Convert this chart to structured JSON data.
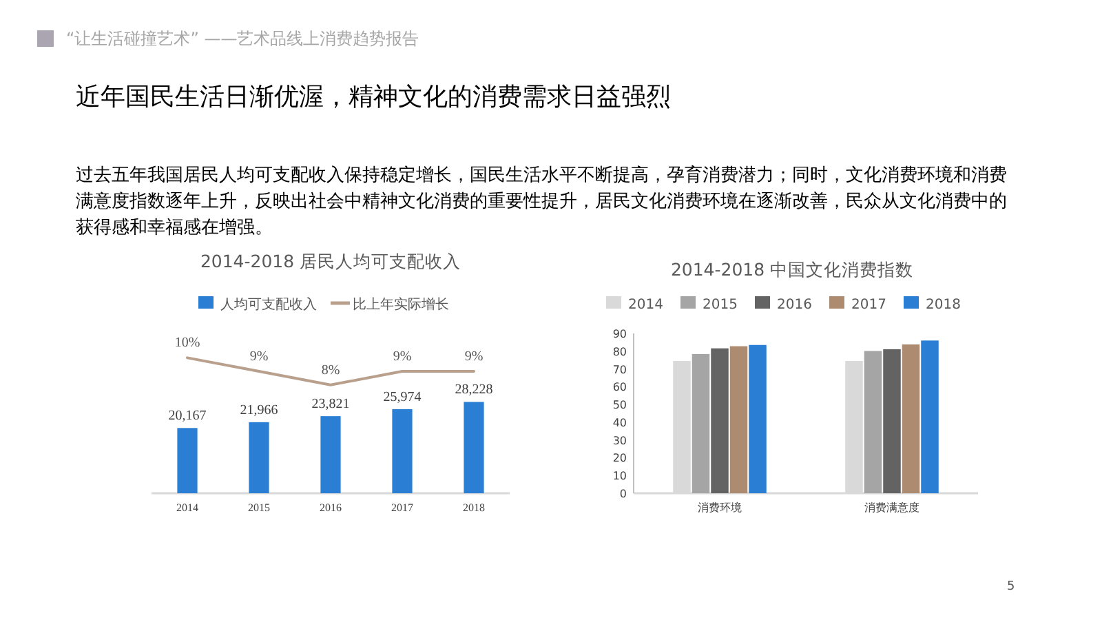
{
  "chart_data": [
    {
      "type": "other",
      "title": "近年国民生活日渐优渥，精神文化的消费需求日益强烈",
      "annotations": [
        "“让生活碰撞艺术” ——艺术品线上消费趋势报告",
        "过去五年我国居民人均可支配收入保持稳定增长，国民生活水平不断提高，孕育消费潜力；同时，文化消费环境和消费满意度指数逐年上升，反映出社会中精神文化消费的重要性提升，居民文化消费环境在逐渐改善，民众从文化消费中的获得感和幸福感在增强。",
        "5",
        "2014-2018 居民人均可支配收入"
      ]
    },
    {
      "type": "bar",
      "categories": [
        "2014",
        "2015",
        "2016",
        "2017",
        "2018"
      ],
      "legend": "top",
      "tick_labels": "x",
      "series": [
        {
          "name": "人均可支配收入",
          "type": "bar",
          "color": "#2a7fd4",
          "values": [
            20167,
            21966,
            23821,
            25974,
            28228
          ],
          "value_labels": [
            "20,167",
            "21,966",
            "23,821",
            "25,974",
            "28,228"
          ]
        }
      ]
    },
    {
      "type": "line",
      "categories": [
        null,
        null,
        null,
        null,
        null
      ],
      "legend": "top",
      "tick_labels": false,
      "series": [
        {
          "name": "比上年实际增长",
          "color": "#b8a08c",
          "values": [
            10,
            9,
            8,
            9,
            9
          ],
          "value_labels": [
            "10%",
            "9%",
            "8%",
            "9%",
            "9%"
          ]
        }
      ]
    },
    {
      "type": "bar",
      "title": "2014-2018 中国文化消费指数",
      "categories": [
        "消费环境",
        "消费满意度"
      ],
      "legend": "top",
      "ylim": [
        0,
        90
      ],
      "yticks": [
        0,
        10,
        20,
        30,
        40,
        50,
        60,
        70,
        80,
        90
      ],
      "series": [
        {
          "name": "2014",
          "color": "#d9d9d9",
          "values": [
            74.5,
            74.5
          ]
        },
        {
          "name": "2015",
          "color": "#a5a5a5",
          "values": [
            78.4,
            80.1
          ]
        },
        {
          "name": "2016",
          "color": "#636363",
          "values": [
            81.6,
            81.1
          ]
        },
        {
          "name": "2017",
          "color": "#ad8b70",
          "values": [
            82.8,
            83.8
          ]
        },
        {
          "name": "2018",
          "color": "#2a7fd4",
          "values": [
            83.5,
            86
          ]
        }
      ]
    }
  ]
}
